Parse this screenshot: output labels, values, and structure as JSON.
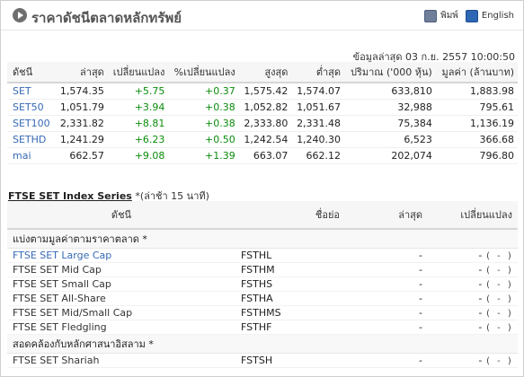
{
  "header": {
    "title": "ราคาดัชนีตลาดหลักทรัพย์",
    "print_label": "พิมพ์",
    "english_label": "English"
  },
  "timestamp": "ข้อมูลล่าสุด 03 ก.ย. 2557 10:00:50",
  "index_table": {
    "columns": [
      "ดัชนี",
      "ล่าสุด",
      "เปลี่ยนแปลง",
      "%เปลี่ยนแปลง",
      "สูงสุด",
      "ต่ำสุด",
      "ปริมาณ ('000 หุ้น)",
      "มูลค่า (ล้านบาท)"
    ],
    "rows": [
      {
        "name": "SET",
        "last": "1,574.35",
        "chg": "+5.75",
        "pct": "+0.37",
        "high": "1,575.42",
        "low": "1,574.07",
        "vol": "633,810",
        "val": "1,883.98"
      },
      {
        "name": "SET50",
        "last": "1,051.79",
        "chg": "+3.94",
        "pct": "+0.38",
        "high": "1,052.82",
        "low": "1,051.67",
        "vol": "32,988",
        "val": "795.61"
      },
      {
        "name": "SET100",
        "last": "2,331.82",
        "chg": "+8.81",
        "pct": "+0.38",
        "high": "2,333.80",
        "low": "2,331.48",
        "vol": "75,384",
        "val": "1,136.19"
      },
      {
        "name": "SETHD",
        "last": "1,241.29",
        "chg": "+6.23",
        "pct": "+0.50",
        "high": "1,242.54",
        "low": "1,240.30",
        "vol": "6,523",
        "val": "366.68"
      },
      {
        "name": "mai",
        "last": "662.57",
        "chg": "+9.08",
        "pct": "+1.39",
        "high": "663.07",
        "low": "662.12",
        "vol": "202,074",
        "val": "796.80"
      }
    ]
  },
  "ftse": {
    "title": "FTSE SET Index Series",
    "subtitle": "*(ล่าช้า 15 นาที)",
    "columns": [
      "ดัชนี",
      "ชื่อย่อ",
      "ล่าสุด",
      "เปลี่ยนแปลง"
    ],
    "groups": [
      {
        "label": "แบ่งตามมูลค่าตามราคาตลาด *",
        "items": [
          {
            "name": "FTSE SET Large Cap",
            "sym": "FSTHL",
            "last": "-",
            "chg": "-",
            "paren": "( - )",
            "link": true
          },
          {
            "name": "FTSE SET Mid Cap",
            "sym": "FSTHM",
            "last": "-",
            "chg": "-",
            "paren": "( - )",
            "link": false
          },
          {
            "name": "FTSE SET Small Cap",
            "sym": "FSTHS",
            "last": "-",
            "chg": "-",
            "paren": "( - )",
            "link": false
          },
          {
            "name": "FTSE SET All-Share",
            "sym": "FSTHA",
            "last": "-",
            "chg": "-",
            "paren": "( - )",
            "link": false
          },
          {
            "name": "FTSE SET Mid/Small Cap",
            "sym": "FSTHMS",
            "last": "-",
            "chg": "-",
            "paren": "( - )",
            "link": false
          },
          {
            "name": "FTSE SET Fledgling",
            "sym": "FSTHF",
            "last": "-",
            "chg": "-",
            "paren": "( - )",
            "link": false
          }
        ]
      },
      {
        "label": "สอดคล้องกับหลักศาสนาอิสลาม *",
        "items": [
          {
            "name": "FTSE SET Shariah",
            "sym": "FSTSH",
            "last": "-",
            "chg": "-",
            "paren": "( - )",
            "link": false
          }
        ]
      }
    ]
  },
  "colors": {
    "link_blue": "#3669b5",
    "up_green": "#0b8c0b"
  }
}
